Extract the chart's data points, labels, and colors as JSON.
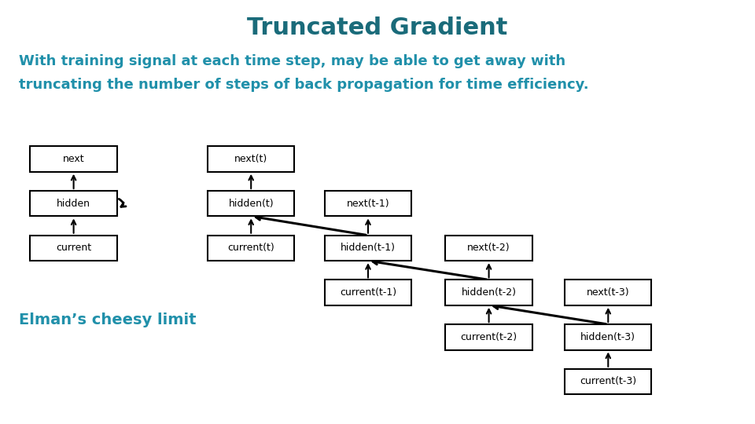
{
  "title": "Truncated Gradient",
  "title_color": "#1a6b7a",
  "subtitle_line1": "With training signal at each time step, may be able to get away with",
  "subtitle_line2": "truncating the number of steps of back propagation for time efficiency.",
  "subtitle_color": "#2090aa",
  "elman_label": "Elman’s cheesy limit",
  "elman_color": "#2090aa",
  "box_color": "#000000",
  "box_facecolor": "#ffffff",
  "text_color": "#000000",
  "background_color": "#ffffff",
  "boxes": {
    "next": [
      0.04,
      0.595,
      0.115,
      0.06
    ],
    "hidden": [
      0.04,
      0.49,
      0.115,
      0.06
    ],
    "current": [
      0.04,
      0.385,
      0.115,
      0.06
    ],
    "next_t": [
      0.275,
      0.595,
      0.115,
      0.06
    ],
    "hidden_t": [
      0.275,
      0.49,
      0.115,
      0.06
    ],
    "current_t": [
      0.275,
      0.385,
      0.115,
      0.06
    ],
    "next_t1": [
      0.43,
      0.49,
      0.115,
      0.06
    ],
    "hidden_t1": [
      0.43,
      0.385,
      0.115,
      0.06
    ],
    "current_t1": [
      0.43,
      0.28,
      0.115,
      0.06
    ],
    "next_t2": [
      0.59,
      0.385,
      0.115,
      0.06
    ],
    "hidden_t2": [
      0.59,
      0.28,
      0.115,
      0.06
    ],
    "current_t2": [
      0.59,
      0.175,
      0.115,
      0.06
    ],
    "next_t3": [
      0.748,
      0.28,
      0.115,
      0.06
    ],
    "hidden_t3": [
      0.748,
      0.175,
      0.115,
      0.06
    ],
    "current_t3": [
      0.748,
      0.07,
      0.115,
      0.06
    ]
  },
  "labels": {
    "next": "next",
    "hidden": "hidden",
    "current": "current",
    "next_t": "next(t)",
    "hidden_t": "hidden(t)",
    "current_t": "current(t)",
    "next_t1": "next(t-1)",
    "hidden_t1": "hidden(t-1)",
    "current_t1": "current(t-1)",
    "next_t2": "next(t-2)",
    "hidden_t2": "hidden(t-2)",
    "current_t2": "current(t-2)",
    "next_t3": "next(t-3)",
    "hidden_t3": "hidden(t-3)",
    "current_t3": "current(t-3)"
  }
}
